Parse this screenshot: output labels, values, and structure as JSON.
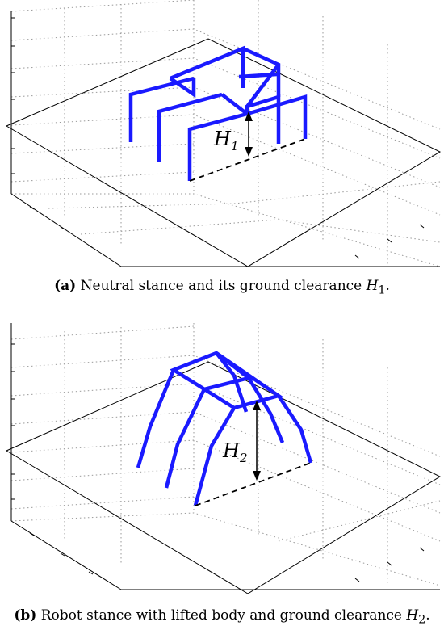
{
  "panel_a": {
    "tag": "(a)",
    "caption_text": " Neutral stance and its ground clearance ",
    "caption_symbol": "H",
    "caption_sub": "1",
    "caption_end": ".",
    "label_symbol": "H",
    "label_sub": "1"
  },
  "panel_b": {
    "tag": "(b)",
    "caption_text": " Robot stance with lifted body and ground clearance ",
    "caption_symbol": "H",
    "caption_sub": "2",
    "caption_end": ".",
    "label_symbol": "H",
    "label_sub": "2"
  },
  "colors": {
    "robot": "#1a1aff",
    "axes": "#000000",
    "grid": "#9a9a9a"
  }
}
